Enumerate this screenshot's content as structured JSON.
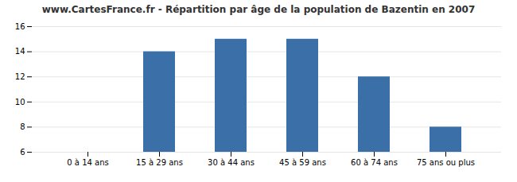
{
  "chart_data": {
    "type": "bar",
    "title": "www.CartesFrance.fr - Répartition par âge de la population de Bazentin en 2007",
    "categories": [
      "0 à 14 ans",
      "15 à 29 ans",
      "30 à 44 ans",
      "45 à 59 ans",
      "60 à 74 ans",
      "75 ans ou plus"
    ],
    "values": [
      6,
      14,
      15,
      15,
      12,
      8
    ],
    "color": "#3a6fa8",
    "ylim": [
      6,
      16
    ],
    "yticks": [
      6,
      8,
      10,
      12,
      14,
      16
    ],
    "grid": true
  }
}
